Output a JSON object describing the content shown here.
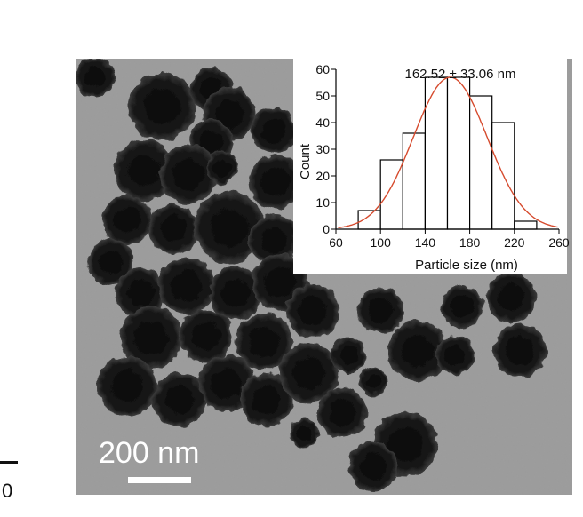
{
  "micrograph": {
    "scale_bar_label": "200 nm",
    "colors": {
      "background": "#9a9a9a",
      "particle": "#121212",
      "scale_bar": "#ffffff"
    }
  },
  "edge_fragment": {
    "text": "0"
  },
  "inset": {
    "chart_data": {
      "type": "bar",
      "title": "162.52 ± 33.06 nm",
      "xlabel": "Particle size (nm)",
      "ylabel": "Count",
      "xlim": [
        60,
        260
      ],
      "ylim": [
        0,
        60
      ],
      "xticks": [
        "60",
        "100",
        "140",
        "180",
        "220",
        "260"
      ],
      "yticks": [
        "0",
        "10",
        "20",
        "30",
        "40",
        "50",
        "60"
      ],
      "bins": [
        {
          "x0": 60,
          "x1": 80,
          "value": 0
        },
        {
          "x0": 80,
          "x1": 100,
          "value": 7
        },
        {
          "x0": 100,
          "x1": 120,
          "value": 26
        },
        {
          "x0": 120,
          "x1": 140,
          "value": 36
        },
        {
          "x0": 140,
          "x1": 160,
          "value": 57
        },
        {
          "x0": 160,
          "x1": 180,
          "value": 57
        },
        {
          "x0": 180,
          "x1": 200,
          "value": 50
        },
        {
          "x0": 200,
          "x1": 220,
          "value": 40
        },
        {
          "x0": 220,
          "x1": 240,
          "value": 3
        }
      ],
      "fit": {
        "type": "gaussian",
        "mean": 162.52,
        "sd": 33.06,
        "peak": 57
      },
      "colors": {
        "bar_fill": "#ffffff",
        "bar_stroke": "#000000",
        "fit": "#d64b2e"
      }
    }
  }
}
